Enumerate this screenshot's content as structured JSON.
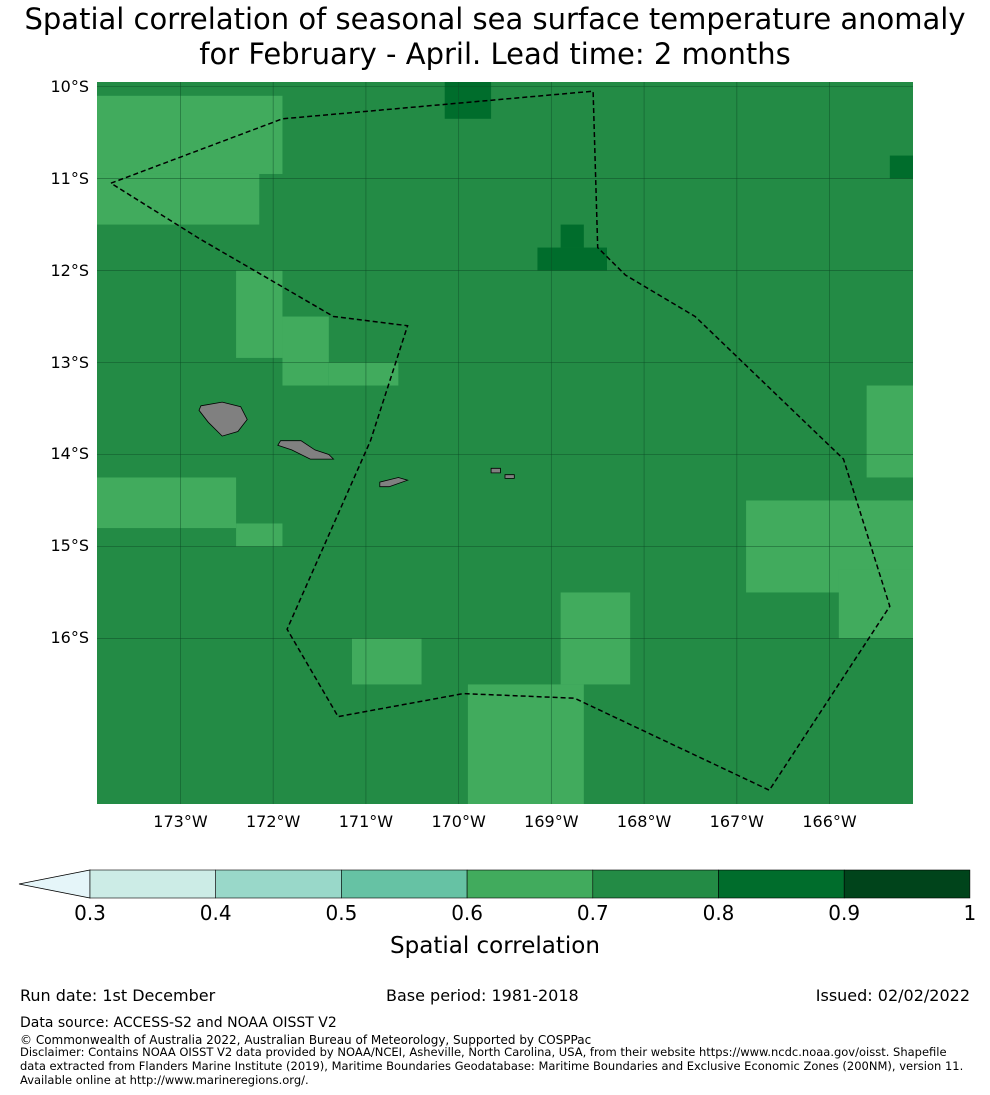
{
  "title": {
    "line1": "Spatial correlation of seasonal sea surface temperature anomaly",
    "line2": "for February - April. Lead time: 2 months"
  },
  "map": {
    "lon_range": [
      -173.9,
      -165.1
    ],
    "lat_range": [
      -17.8,
      -9.95
    ],
    "lat_ticks": [
      {
        "value": -10,
        "label": "10°S"
      },
      {
        "value": -11,
        "label": "11°S"
      },
      {
        "value": -12,
        "label": "12°S"
      },
      {
        "value": -13,
        "label": "13°S"
      },
      {
        "value": -14,
        "label": "14°S"
      },
      {
        "value": -15,
        "label": "15°S"
      },
      {
        "value": -16,
        "label": "16°S"
      }
    ],
    "lon_ticks": [
      {
        "value": -173,
        "label": "173°W"
      },
      {
        "value": -172,
        "label": "172°W"
      },
      {
        "value": -171,
        "label": "171°W"
      },
      {
        "value": -170,
        "label": "170°W"
      },
      {
        "value": -169,
        "label": "169°W"
      },
      {
        "value": -168,
        "label": "168°W"
      },
      {
        "value": -167,
        "label": "167°W"
      },
      {
        "value": -166,
        "label": "166°W"
      }
    ],
    "colors": {
      "background_class": "#238b45",
      "mid_class": "#41ab5d",
      "high_class": "#006d2c",
      "land": "#808080",
      "eez_line": "#000000"
    },
    "regions_0_6_to_0_7": [
      {
        "lon": [
          -173.9,
          -171.9
        ],
        "lat": [
          -10.95,
          -10.1
        ]
      },
      {
        "lon": [
          -173.9,
          -172.15
        ],
        "lat": [
          -11.5,
          -10.95
        ]
      },
      {
        "lon": [
          -172.4,
          -171.9
        ],
        "lat": [
          -12.95,
          -12.0
        ]
      },
      {
        "lon": [
          -171.9,
          -171.4
        ],
        "lat": [
          -13.25,
          -12.5
        ]
      },
      {
        "lon": [
          -171.4,
          -170.65
        ],
        "lat": [
          -13.25,
          -13.0
        ]
      },
      {
        "lon": [
          -173.9,
          -172.4
        ],
        "lat": [
          -14.8,
          -14.25
        ]
      },
      {
        "lon": [
          -172.4,
          -171.9
        ],
        "lat": [
          -15.0,
          -14.75
        ]
      },
      {
        "lon": [
          -171.15,
          -170.4
        ],
        "lat": [
          -16.5,
          -16.0
        ]
      },
      {
        "lon": [
          -169.9,
          -168.65
        ],
        "lat": [
          -17.85,
          -16.5
        ]
      },
      {
        "lon": [
          -168.9,
          -168.15
        ],
        "lat": [
          -16.5,
          -15.5
        ]
      },
      {
        "lon": [
          -166.9,
          -165.1
        ],
        "lat": [
          -15.5,
          -14.5
        ]
      },
      {
        "lon": [
          -165.9,
          -165.1
        ],
        "lat": [
          -16.0,
          -15.25
        ]
      },
      {
        "lon": [
          -165.6,
          -165.1
        ],
        "lat": [
          -14.25,
          -13.25
        ]
      }
    ],
    "regions_0_8_to_0_9": [
      {
        "lon": [
          -169.15,
          -168.4
        ],
        "lat": [
          -12.0,
          -11.75
        ]
      },
      {
        "lon": [
          -168.9,
          -168.65
        ],
        "lat": [
          -11.75,
          -11.5
        ]
      },
      {
        "lon": [
          -170.15,
          -169.65
        ],
        "lat": [
          -10.35,
          -9.95
        ]
      },
      {
        "lon": [
          -165.35,
          -165.1
        ],
        "lat": [
          -11.0,
          -10.75
        ]
      }
    ],
    "eez_boundary": [
      [
        -173.75,
        -11.05
      ],
      [
        -171.9,
        -10.35
      ],
      [
        -168.55,
        -10.05
      ],
      [
        -168.5,
        -11.75
      ],
      [
        -168.2,
        -12.05
      ],
      [
        -167.45,
        -12.5
      ],
      [
        -165.85,
        -14.05
      ],
      [
        -165.35,
        -15.65
      ],
      [
        -166.65,
        -17.65
      ],
      [
        -168.75,
        -16.65
      ],
      [
        -169.95,
        -16.6
      ],
      [
        -171.3,
        -16.85
      ],
      [
        -171.85,
        -15.9
      ],
      [
        -170.95,
        -13.85
      ],
      [
        -170.55,
        -12.6
      ],
      [
        -171.35,
        -12.5
      ],
      [
        -172.8,
        -11.65
      ],
      [
        -173.75,
        -11.05
      ]
    ],
    "islands": [
      [
        [
          -172.78,
          -13.47
        ],
        [
          -172.55,
          -13.43
        ],
        [
          -172.35,
          -13.48
        ],
        [
          -172.28,
          -13.62
        ],
        [
          -172.38,
          -13.75
        ],
        [
          -172.55,
          -13.8
        ],
        [
          -172.7,
          -13.65
        ],
        [
          -172.8,
          -13.52
        ]
      ],
      [
        [
          -171.92,
          -13.85
        ],
        [
          -171.7,
          -13.85
        ],
        [
          -171.55,
          -13.95
        ],
        [
          -171.4,
          -14.0
        ],
        [
          -171.35,
          -14.05
        ],
        [
          -171.6,
          -14.05
        ],
        [
          -171.8,
          -13.95
        ],
        [
          -171.95,
          -13.9
        ]
      ],
      [
        [
          -170.85,
          -14.3
        ],
        [
          -170.65,
          -14.25
        ],
        [
          -170.55,
          -14.28
        ],
        [
          -170.75,
          -14.35
        ],
        [
          -170.85,
          -14.35
        ]
      ],
      [
        [
          -169.65,
          -14.15
        ],
        [
          -169.55,
          -14.15
        ],
        [
          -169.55,
          -14.2
        ],
        [
          -169.65,
          -14.2
        ]
      ],
      [
        [
          -169.5,
          -14.22
        ],
        [
          -169.4,
          -14.22
        ],
        [
          -169.4,
          -14.26
        ],
        [
          -169.5,
          -14.26
        ]
      ]
    ]
  },
  "colorbar": {
    "label": "Spatial correlation",
    "ticks": [
      "0.3",
      "0.4",
      "0.5",
      "0.6",
      "0.7",
      "0.8",
      "0.9",
      "1"
    ],
    "extend_color": "#e5f5f9",
    "colors": [
      "#ccece6",
      "#99d8c9",
      "#66c2a4",
      "#41ab5d",
      "#238b45",
      "#006d2c",
      "#00441b"
    ]
  },
  "footer": {
    "run_date": "Run date: 1st December",
    "base_period": "Base period: 1981-2018",
    "issued": "Issued: 02/02/2022",
    "data_source": "Data source: ACCESS-S2 and NOAA OISST V2",
    "copyright": "© Commonwealth of Australia 2022, Australian Bureau of Meteorology, Supported by COSPPac",
    "disclaimer": "Disclaimer: Contains NOAA OISST V2 data provided by NOAA/NCEI, Asheville, North Carolina, USA, from their website https://www.ncdc.noaa.gov/oisst. Shapefile data extracted from Flanders Marine Institute (2019), Maritime Boundaries Geodatabase: Maritime Boundaries and Exclusive Economic Zones (200NM), version 11. Available online at http://www.marineregions.org/."
  }
}
